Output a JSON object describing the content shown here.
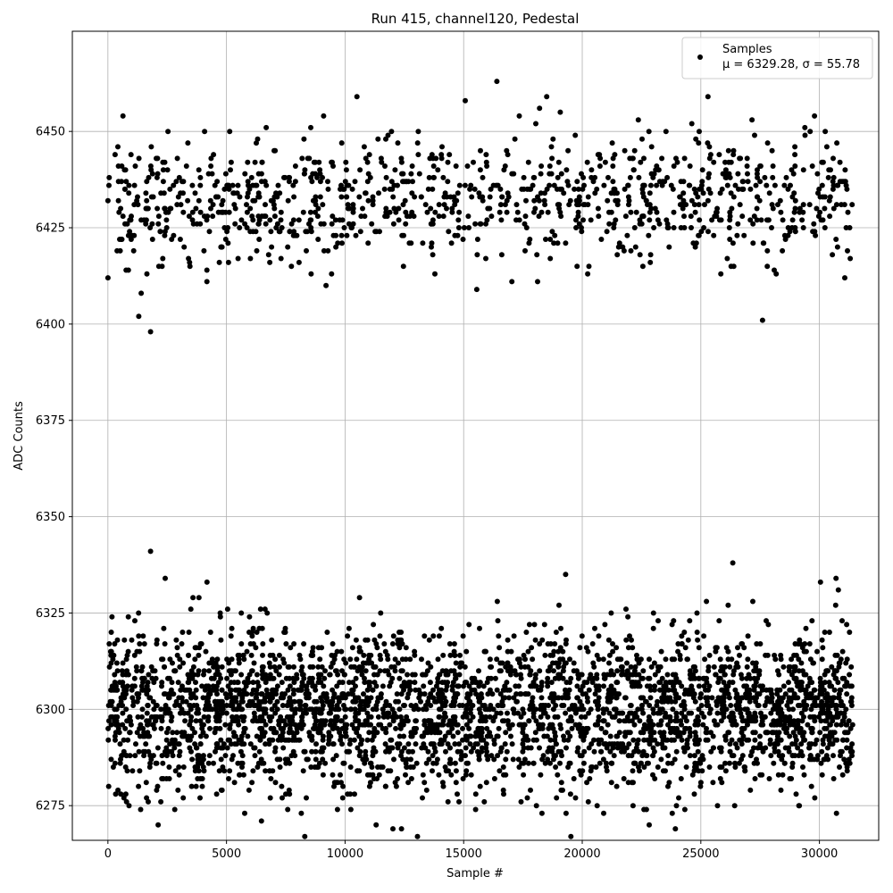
{
  "chart_data": {
    "type": "scatter",
    "title": "Run 415, channel120, Pedestal",
    "xlabel": "Sample #",
    "ylabel": "ADC Counts",
    "xlim": [
      -1500,
      32500
    ],
    "ylim": [
      6266,
      6476
    ],
    "xticks": [
      0,
      5000,
      10000,
      15000,
      20000,
      25000,
      30000
    ],
    "yticks": [
      6275,
      6300,
      6325,
      6350,
      6375,
      6400,
      6425,
      6450
    ],
    "grid": true,
    "legend": {
      "position": "top-right"
    },
    "series": [
      {
        "name": "Samples",
        "label_line2": "μ = 6329.28, σ = 55.78",
        "color": "#000000",
        "marker": "circle",
        "n_samples": 31400,
        "clusters": [
          {
            "center": 6300,
            "sigma": 10,
            "fraction": 0.76
          },
          {
            "center": 6432,
            "sigma": 8,
            "fraction": 0.24
          }
        ],
        "outliers": [
          {
            "x": 1800,
            "y": 6341
          },
          {
            "x": 1800,
            "y": 6398
          },
          {
            "x": 1300,
            "y": 6402
          },
          {
            "x": 16400,
            "y": 6463
          },
          {
            "x": 19300,
            "y": 6335
          },
          {
            "x": 8300,
            "y": 6267
          },
          {
            "x": 27600,
            "y": 6401
          },
          {
            "x": 25300,
            "y": 6459
          },
          {
            "x": 10500,
            "y": 6459
          },
          {
            "x": 18500,
            "y": 6459
          },
          {
            "x": 30700,
            "y": 6334
          },
          {
            "x": 30800,
            "y": 6331
          }
        ]
      }
    ]
  }
}
